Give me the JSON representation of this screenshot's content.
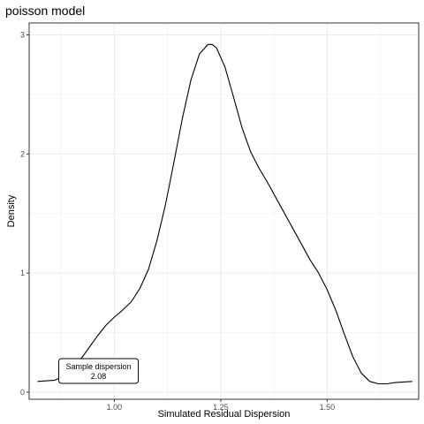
{
  "chart_data": {
    "type": "line",
    "title": "poisson model",
    "xlabel": "Simulated Residual Dispersion",
    "ylabel": "Density",
    "xlim": [
      0.8,
      1.715
    ],
    "ylim": [
      -0.06,
      3.1
    ],
    "x_ticks": [
      1.0,
      1.25,
      1.5
    ],
    "x_tick_labels": [
      "1.00",
      "1.25",
      "1.50"
    ],
    "y_ticks": [
      0,
      1,
      2,
      3
    ],
    "y_tick_labels": [
      "0",
      "1",
      "2",
      "3"
    ],
    "grid": true,
    "legend": "none",
    "series": [
      {
        "x": [
          0.82,
          0.86,
          0.88,
          0.9,
          0.92,
          0.94,
          0.96,
          0.98,
          1.0,
          1.02,
          1.04,
          1.06,
          1.08,
          1.1,
          1.12,
          1.14,
          1.16,
          1.18,
          1.2,
          1.22,
          1.23,
          1.24,
          1.26,
          1.28,
          1.3,
          1.32,
          1.34,
          1.36,
          1.38,
          1.4,
          1.42,
          1.44,
          1.46,
          1.48,
          1.5,
          1.52,
          1.54,
          1.56,
          1.58,
          1.6,
          1.62,
          1.64,
          1.66,
          1.7
        ],
        "y": [
          0.09,
          0.1,
          0.13,
          0.19,
          0.27,
          0.37,
          0.47,
          0.56,
          0.63,
          0.69,
          0.76,
          0.87,
          1.03,
          1.27,
          1.57,
          1.93,
          2.3,
          2.62,
          2.84,
          2.92,
          2.92,
          2.89,
          2.73,
          2.48,
          2.22,
          2.02,
          1.88,
          1.76,
          1.63,
          1.5,
          1.37,
          1.24,
          1.11,
          1.0,
          0.86,
          0.69,
          0.49,
          0.3,
          0.16,
          0.09,
          0.07,
          0.07,
          0.08,
          0.09
        ]
      }
    ],
    "annotation": {
      "title": "Sample dispersion",
      "value": "2.08",
      "x": 0.963,
      "y": 0.155
    }
  }
}
